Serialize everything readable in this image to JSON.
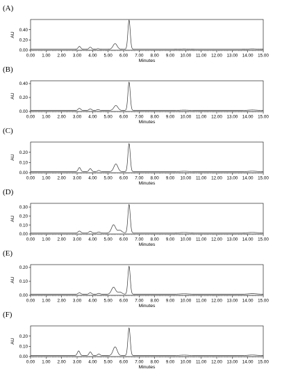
{
  "chart_data": [
    {
      "type": "line",
      "panel": "(A)",
      "xlabel": "Minutes",
      "ylabel": "AU",
      "xlim": [
        0.0,
        15.0
      ],
      "ylim": [
        0.0,
        0.6
      ],
      "xticks": [
        "0.00",
        "1.00",
        "2.00",
        "3.00",
        "4.00",
        "5.00",
        "6.00",
        "7.00",
        "8.00",
        "9.00",
        "10.00",
        "11.00",
        "12.00",
        "13.00",
        "14.00",
        "15.00"
      ],
      "yticks": [
        "0.00",
        "0.20",
        "0.40"
      ],
      "ytick_values": [
        0.0,
        0.2,
        0.4
      ],
      "baseline": 0.018,
      "peaks": [
        {
          "rt": 3.15,
          "height": 0.055
        },
        {
          "rt": 3.85,
          "height": 0.04
        },
        {
          "rt": 4.35,
          "height": 0.012
        },
        {
          "rt": 5.45,
          "height": 0.11
        },
        {
          "rt": 6.35,
          "height": 0.57
        },
        {
          "rt": 9.9,
          "height": 0.006
        },
        {
          "rt": 14.3,
          "height": 0.008
        }
      ]
    },
    {
      "type": "line",
      "panel": "(B)",
      "xlabel": "Minutes",
      "ylabel": "AU",
      "xlim": [
        0.0,
        15.0
      ],
      "ylim": [
        0.0,
        0.44
      ],
      "xticks": [
        "0.00",
        "1.00",
        "2.00",
        "3.00",
        "4.00",
        "5.00",
        "6.00",
        "7.00",
        "8.00",
        "9.00",
        "10.00",
        "11.00",
        "12.00",
        "13.00",
        "14.00",
        "15.00"
      ],
      "yticks": [
        "0.00",
        "0.20",
        "0.40"
      ],
      "ytick_values": [
        0.0,
        0.2,
        0.4
      ],
      "baseline": 0.015,
      "peaks": [
        {
          "rt": 3.15,
          "height": 0.03
        },
        {
          "rt": 3.85,
          "height": 0.02
        },
        {
          "rt": 4.35,
          "height": 0.012
        },
        {
          "rt": 5.5,
          "height": 0.07
        },
        {
          "rt": 6.35,
          "height": 0.405
        },
        {
          "rt": 9.9,
          "height": 0.004
        },
        {
          "rt": 14.3,
          "height": 0.006
        }
      ]
    },
    {
      "type": "line",
      "panel": "(C)",
      "xlabel": "Minutes",
      "ylabel": "AU",
      "xlim": [
        0.0,
        15.0
      ],
      "ylim": [
        0.0,
        0.3
      ],
      "xticks": [
        "0.00",
        "1.00",
        "2.00",
        "3.00",
        "4.00",
        "5.00",
        "6.00",
        "7.00",
        "8.00",
        "9.00",
        "10.00",
        "11.00",
        "12.00",
        "13.00",
        "14.00",
        "15.00"
      ],
      "yticks": [
        "0.00",
        "0.10",
        "0.20"
      ],
      "ytick_values": [
        0.0,
        0.1,
        0.2
      ],
      "baseline": 0.01,
      "peaks": [
        {
          "rt": 3.15,
          "height": 0.04
        },
        {
          "rt": 3.85,
          "height": 0.03
        },
        {
          "rt": 4.4,
          "height": 0.012
        },
        {
          "rt": 5.5,
          "height": 0.075
        },
        {
          "rt": 6.35,
          "height": 0.275
        },
        {
          "rt": 9.9,
          "height": 0.004
        },
        {
          "rt": 14.3,
          "height": 0.005
        }
      ]
    },
    {
      "type": "line",
      "panel": "(D)",
      "xlabel": "Minutes",
      "ylabel": "AU",
      "xlim": [
        0.0,
        15.0
      ],
      "ylim": [
        0.0,
        0.34
      ],
      "xticks": [
        "0.00",
        "1.00",
        "2.00",
        "3.00",
        "4.00",
        "5.00",
        "6.00",
        "7.00",
        "8.00",
        "9.00",
        "10.00",
        "11.00",
        "12.00",
        "13.00",
        "14.00",
        "15.00"
      ],
      "yticks": [
        "0.00",
        "0.10",
        "0.20",
        "0.30"
      ],
      "ytick_values": [
        0.0,
        0.1,
        0.2,
        0.3
      ],
      "baseline": 0.012,
      "peaks": [
        {
          "rt": 3.15,
          "height": 0.02
        },
        {
          "rt": 3.85,
          "height": 0.018
        },
        {
          "rt": 4.4,
          "height": 0.01
        },
        {
          "rt": 5.35,
          "height": 0.09
        },
        {
          "rt": 5.75,
          "height": 0.03
        },
        {
          "rt": 6.35,
          "height": 0.315
        },
        {
          "rt": 9.9,
          "height": 0.004
        },
        {
          "rt": 14.3,
          "height": 0.005
        }
      ]
    },
    {
      "type": "line",
      "panel": "(E)",
      "xlabel": "Minutes",
      "ylabel": "AU",
      "xlim": [
        0.0,
        15.0
      ],
      "ylim": [
        0.0,
        0.22
      ],
      "xticks": [
        "0.00",
        "1.00",
        "2.00",
        "3.00",
        "4.00",
        "5.00",
        "6.00",
        "7.00",
        "8.00",
        "9.00",
        "10.00",
        "11.00",
        "12.00",
        "13.00",
        "14.00",
        "15.00"
      ],
      "yticks": [
        "0.00",
        "0.10",
        "0.20"
      ],
      "ytick_values": [
        0.0,
        0.1,
        0.2
      ],
      "baseline": 0.008,
      "peaks": [
        {
          "rt": 3.15,
          "height": 0.01
        },
        {
          "rt": 3.85,
          "height": 0.01
        },
        {
          "rt": 4.4,
          "height": 0.006
        },
        {
          "rt": 5.35,
          "height": 0.05
        },
        {
          "rt": 5.75,
          "height": 0.015
        },
        {
          "rt": 6.35,
          "height": 0.2
        },
        {
          "rt": 9.9,
          "height": 0.003
        },
        {
          "rt": 14.3,
          "height": 0.004
        }
      ]
    },
    {
      "type": "line",
      "panel": "(F)",
      "xlabel": "Minutes",
      "ylabel": "AU",
      "xlim": [
        0.0,
        15.0
      ],
      "ylim": [
        0.0,
        0.3
      ],
      "xticks": [
        "0.00",
        "1.00",
        "2.00",
        "3.00",
        "4.00",
        "5.00",
        "6.00",
        "7.00",
        "8.00",
        "9.00",
        "10.00",
        "11.00",
        "12.00",
        "13.00",
        "14.00",
        "15.00"
      ],
      "yticks": [
        "0.00",
        "0.10",
        "0.20"
      ],
      "ytick_values": [
        0.0,
        0.1,
        0.2
      ],
      "baseline": 0.01,
      "peaks": [
        {
          "rt": 3.1,
          "height": 0.045
        },
        {
          "rt": 3.85,
          "height": 0.035
        },
        {
          "rt": 4.4,
          "height": 0.015
        },
        {
          "rt": 5.45,
          "height": 0.085
        },
        {
          "rt": 6.35,
          "height": 0.27
        },
        {
          "rt": 9.9,
          "height": 0.004
        },
        {
          "rt": 14.3,
          "height": 0.005
        }
      ]
    }
  ]
}
